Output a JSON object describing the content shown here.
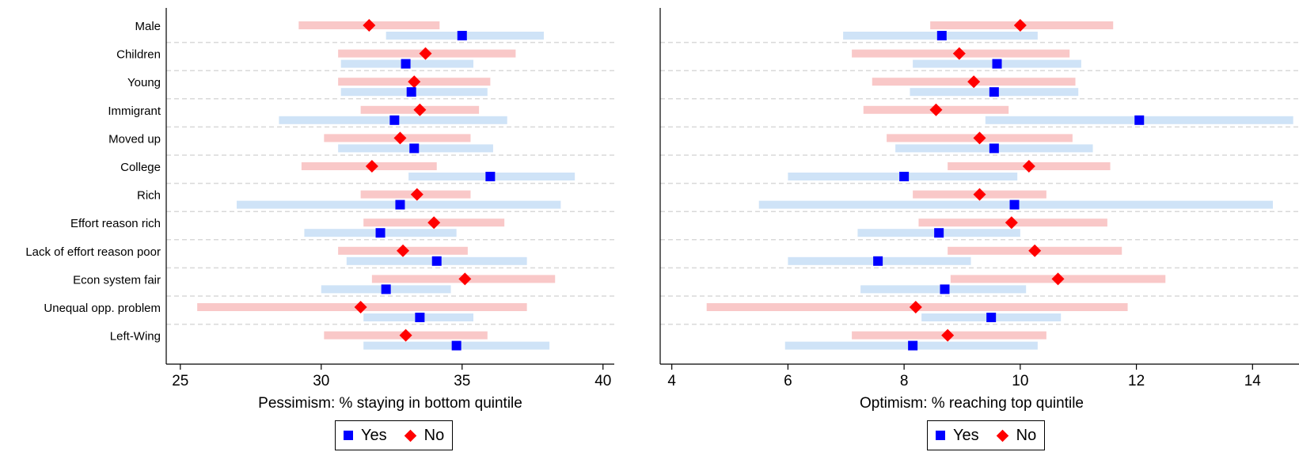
{
  "legend": {
    "yes_label": "Yes",
    "no_label": "No",
    "yes_color": "#0000ff",
    "no_color": "#ff0000",
    "yes_ci_color": "#cfe3f7",
    "no_ci_color": "#f9c8c8"
  },
  "chart_data": [
    {
      "type": "scatter",
      "xlabel": "Pessimism: % staying in bottom quintile",
      "xlim": [
        24.5,
        40.4
      ],
      "xticks": [
        25,
        30,
        35,
        40
      ],
      "categories": [
        "Male",
        "Children",
        "Young",
        "Immigrant",
        "Moved up",
        "College",
        "Rich",
        "Effort reason rich",
        "Lack of effort reason poor",
        "Econ system fair",
        "Unequal opp. problem",
        "Left-Wing"
      ],
      "series": [
        {
          "name": "Yes",
          "marker": "square",
          "values": [
            35.0,
            33.0,
            33.2,
            32.6,
            33.3,
            36.0,
            32.8,
            32.1,
            34.1,
            32.3,
            33.5,
            34.8
          ],
          "ci_low": [
            32.3,
            30.7,
            30.7,
            28.5,
            30.6,
            33.1,
            27.0,
            29.4,
            30.9,
            30.0,
            31.5,
            31.5
          ],
          "ci_high": [
            37.9,
            35.4,
            35.9,
            36.6,
            36.1,
            39.0,
            38.5,
            34.8,
            37.3,
            34.6,
            35.4,
            38.1
          ]
        },
        {
          "name": "No",
          "marker": "diamond",
          "values": [
            31.7,
            33.7,
            33.3,
            33.5,
            32.8,
            31.8,
            33.4,
            34.0,
            32.9,
            35.1,
            31.4,
            33.0
          ],
          "ci_low": [
            29.2,
            30.6,
            30.6,
            31.4,
            30.1,
            29.3,
            31.4,
            31.5,
            30.6,
            31.8,
            25.6,
            30.1
          ],
          "ci_high": [
            34.2,
            36.9,
            36.0,
            35.6,
            35.3,
            34.1,
            35.3,
            36.5,
            35.2,
            38.3,
            37.3,
            35.9
          ]
        }
      ]
    },
    {
      "type": "scatter",
      "xlabel": "Optimism: % reaching top quintile",
      "xlim": [
        3.8,
        14.8
      ],
      "xticks": [
        4,
        6,
        8,
        10,
        12,
        14
      ],
      "categories": [
        "Male",
        "Children",
        "Young",
        "Immigrant",
        "Moved up",
        "College",
        "Rich",
        "Effort reason rich",
        "Lack of effort reason poor",
        "Econ system fair",
        "Unequal opp. problem",
        "Left-Wing"
      ],
      "series": [
        {
          "name": "Yes",
          "marker": "square",
          "values": [
            8.65,
            9.6,
            9.55,
            12.05,
            9.55,
            8.0,
            9.9,
            8.6,
            7.55,
            8.7,
            9.5,
            8.15
          ],
          "ci_low": [
            6.95,
            8.15,
            8.1,
            9.4,
            7.85,
            6.0,
            5.5,
            7.2,
            6.0,
            7.25,
            8.3,
            5.95
          ],
          "ci_high": [
            10.3,
            11.05,
            11.0,
            14.7,
            11.25,
            9.95,
            14.35,
            10.0,
            9.15,
            10.1,
            10.7,
            10.3
          ]
        },
        {
          "name": "No",
          "marker": "diamond",
          "values": [
            10.0,
            8.95,
            9.2,
            8.55,
            9.3,
            10.15,
            9.3,
            9.85,
            10.25,
            10.65,
            8.2,
            8.75
          ],
          "ci_low": [
            8.45,
            7.1,
            7.45,
            7.3,
            7.7,
            8.75,
            8.15,
            8.25,
            8.75,
            8.8,
            4.6,
            7.1
          ],
          "ci_high": [
            11.6,
            10.85,
            10.95,
            9.8,
            10.9,
            11.55,
            10.45,
            11.5,
            11.75,
            12.5,
            11.85,
            10.45
          ]
        }
      ]
    }
  ]
}
